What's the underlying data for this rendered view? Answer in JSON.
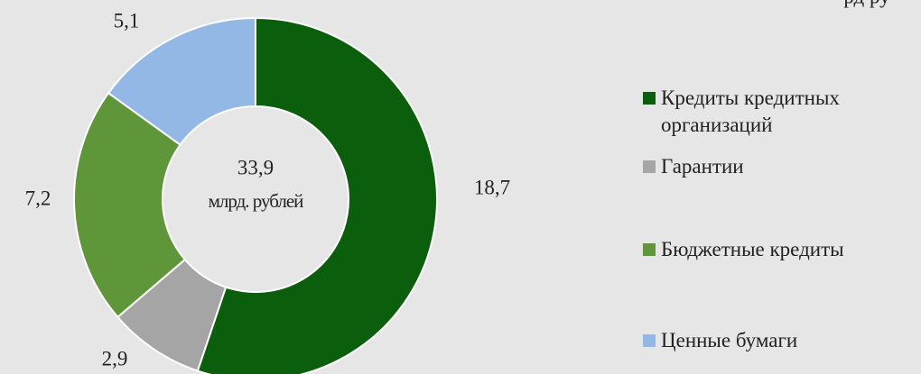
{
  "chart_data": {
    "type": "donut",
    "corner_text": "рд ру",
    "center_text": [
      "33,9",
      "млрд. рублей"
    ],
    "categories": [
      "Кредиты кредитных организаций",
      "Гарантии",
      "Бюджетные кредиты",
      "Ценные бумаги"
    ],
    "values": [
      18.7,
      2.9,
      7.2,
      5.1
    ],
    "value_labels": [
      "18,7",
      "2,9",
      "7,2",
      "5,1"
    ],
    "colors": [
      "#0b5e0b",
      "#a5a5a5",
      "#5f9639",
      "#93b8e5"
    ],
    "legend": "right"
  }
}
